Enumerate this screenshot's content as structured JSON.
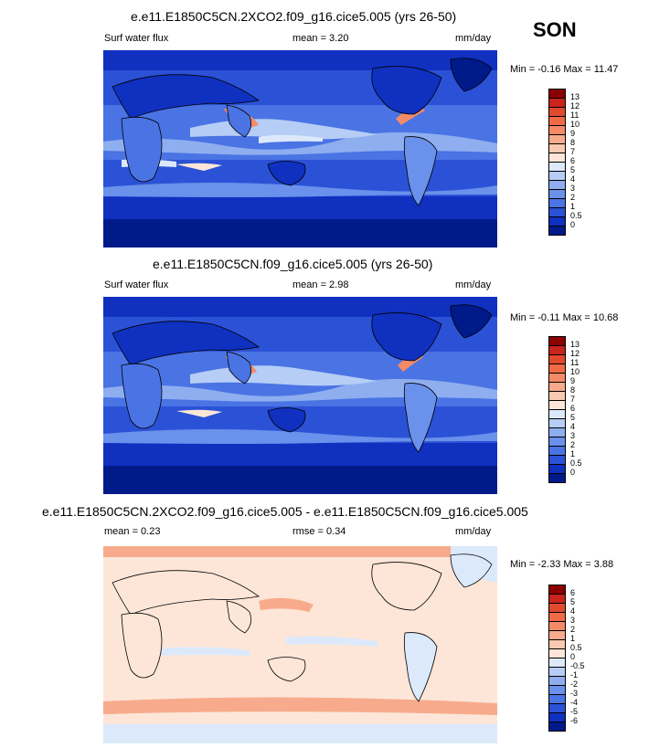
{
  "season": "SON",
  "panels": [
    {
      "title": "e.e11.E1850C5CN.2XCO2.f09_g16.cice5.005 (yrs 26-50)",
      "left_label": "Surf water flux",
      "mid_label": "mean =   3.20",
      "units": "mm/day",
      "minmax": "Min =  -0.16 Max =  11.47",
      "levels": [
        "13",
        "12",
        "11",
        "10",
        "9",
        "8",
        "7",
        "6",
        "5",
        "4",
        "3",
        "2",
        "1",
        "0.5",
        "0"
      ],
      "colors": [
        "#8b0000",
        "#c8251b",
        "#e04a2c",
        "#ef6b45",
        "#f48b66",
        "#f7ab8c",
        "#fac9b2",
        "#fde6d8",
        "#dce9fb",
        "#b6cdf5",
        "#8eaef0",
        "#6a91eb",
        "#4a73e4",
        "#2b52d6",
        "#1030c0",
        "#001a8a"
      ]
    },
    {
      "title": "e.e11.E1850C5CN.f09_g16.cice5.005 (yrs 26-50)",
      "left_label": "Surf water flux",
      "mid_label": "mean =   2.98",
      "units": "mm/day",
      "minmax": "Min =  -0.11 Max =  10.68",
      "levels": [
        "13",
        "12",
        "11",
        "10",
        "9",
        "8",
        "7",
        "6",
        "5",
        "4",
        "3",
        "2",
        "1",
        "0.5",
        "0"
      ],
      "colors": [
        "#8b0000",
        "#c8251b",
        "#e04a2c",
        "#ef6b45",
        "#f48b66",
        "#f7ab8c",
        "#fac9b2",
        "#fde6d8",
        "#dce9fb",
        "#b6cdf5",
        "#8eaef0",
        "#6a91eb",
        "#4a73e4",
        "#2b52d6",
        "#1030c0",
        "#001a8a"
      ]
    },
    {
      "title": "e.e11.E1850C5CN.2XCO2.f09_g16.cice5.005 - e.e11.E1850C5CN.f09_g16.cice5.005",
      "left_label": "mean =   0.23",
      "mid_label": "rmse =   0.34",
      "units": "mm/day",
      "minmax": "Min =  -2.33 Max =   3.88",
      "levels": [
        "6",
        "5",
        "4",
        "3",
        "2",
        "1",
        "0.5",
        "0",
        "-0.5",
        "-1",
        "-2",
        "-3",
        "-4",
        "-5",
        "-6"
      ],
      "colors": [
        "#8b0000",
        "#c8251b",
        "#e04a2c",
        "#ef6b45",
        "#f48b66",
        "#f7ab8c",
        "#fac9b2",
        "#fde6d8",
        "#dce9fb",
        "#b6cdf5",
        "#8eaef0",
        "#6a91eb",
        "#4a73e4",
        "#2b52d6",
        "#1030c0",
        "#001a8a"
      ]
    }
  ],
  "map_colors": {
    "wet_deep": "#1030c0",
    "wet_mid": "#4a73e4",
    "wet_light": "#8eaef0",
    "wet_pale": "#dce9fb",
    "dry": "#001a8a",
    "hot": "#f48b66",
    "diff_base": "#fde6d8",
    "diff_pos": "#f7ab8c",
    "diff_neg": "#dce9fb"
  }
}
